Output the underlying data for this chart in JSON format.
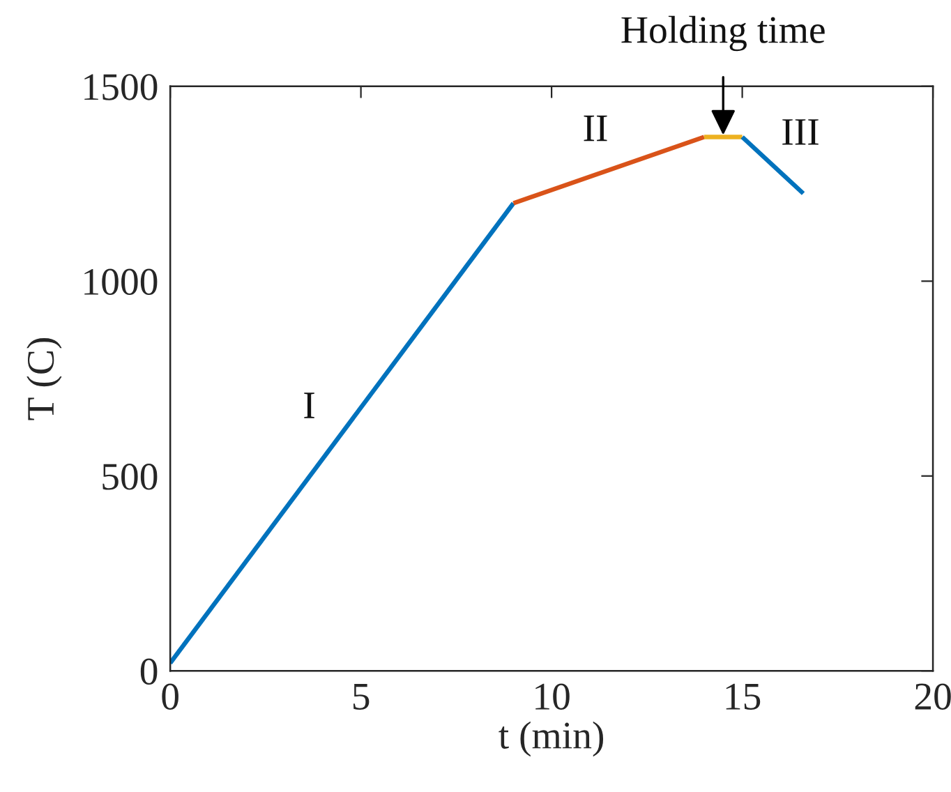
{
  "chart_data": {
    "type": "line",
    "xlabel": "t (min)",
    "ylabel": "T (C)",
    "xlim": [
      0,
      20
    ],
    "xticks": [
      0,
      5,
      10,
      15,
      20
    ],
    "ylim": [
      0,
      1500
    ],
    "yticks": [
      0,
      500,
      1000,
      1500
    ],
    "line_style": "solid",
    "series": [
      {
        "name": "I",
        "color": "#0072bd",
        "x": [
          0,
          9
        ],
        "values": [
          20,
          1200
        ]
      },
      {
        "name": "II",
        "color": "#d95319",
        "x": [
          9,
          14
        ],
        "values": [
          1200,
          1370
        ]
      },
      {
        "color": "#edb120",
        "x": [
          14,
          15
        ],
        "values": [
          1370,
          1370
        ]
      },
      {
        "name": "III",
        "color": "#0072bd",
        "x": [
          15,
          16.6
        ],
        "values": [
          1370,
          1225
        ]
      }
    ],
    "annotations": [
      {
        "text": "Holding time",
        "x": 14.5,
        "y": 1370
      }
    ]
  }
}
